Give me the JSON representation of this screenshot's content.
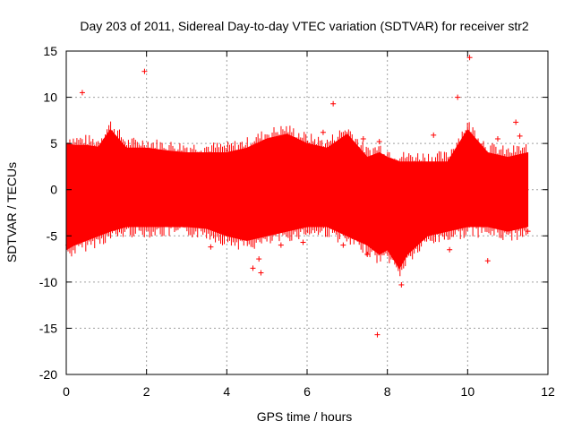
{
  "chart_data": {
    "type": "scatter",
    "title": "Day 203 of 2011, Sidereal Day-to-day VTEC variation (SDTVAR) for receiver str2",
    "xlabel": "GPS time / hours",
    "ylabel": "SDTVAR / TECUs",
    "xlim": [
      0,
      12
    ],
    "ylim": [
      -20,
      15
    ],
    "xticks": [
      0,
      2,
      4,
      6,
      8,
      10,
      12
    ],
    "yticks": [
      -20,
      -15,
      -10,
      -5,
      0,
      5,
      10,
      15
    ],
    "grid": true,
    "marker": "+",
    "color": "#ff0000",
    "series": [
      {
        "name": "SDTVAR",
        "band": {
          "x": [
            0,
            0.2,
            0.5,
            0.8,
            1.1,
            1.5,
            2.0,
            2.5,
            3.0,
            3.5,
            4.0,
            4.5,
            5.0,
            5.5,
            6.0,
            6.5,
            7.0,
            7.5,
            7.8,
            8.0,
            8.3,
            8.5,
            9.0,
            9.5,
            10.0,
            10.5,
            11.0,
            11.5
          ],
          "upper": [
            5.0,
            4.8,
            4.8,
            4.6,
            6.5,
            4.5,
            4.5,
            4.2,
            4.0,
            4.0,
            4.0,
            4.5,
            5.5,
            6.0,
            5.0,
            4.5,
            6.0,
            3.5,
            4.0,
            3.5,
            3.0,
            3.0,
            3.0,
            3.0,
            6.5,
            4.0,
            3.5,
            4.0
          ],
          "lower": [
            -6.5,
            -6.0,
            -5.5,
            -5.0,
            -4.5,
            -4.0,
            -4.0,
            -4.0,
            -4.0,
            -4.2,
            -5.0,
            -5.5,
            -5.0,
            -4.5,
            -4.0,
            -4.0,
            -5.0,
            -6.0,
            -7.0,
            -6.5,
            -8.5,
            -7.0,
            -5.0,
            -4.5,
            -4.0,
            -4.0,
            -4.5,
            -4.0
          ]
        },
        "outliers": {
          "x": [
            0.4,
            1.95,
            0.05,
            3.6,
            4.65,
            4.8,
            4.85,
            5.35,
            5.9,
            6.4,
            6.65,
            6.9,
            7.4,
            7.5,
            7.75,
            7.8,
            8.35,
            9.15,
            9.55,
            9.75,
            10.05,
            10.5,
            10.75,
            11.2,
            11.3,
            11.5
          ],
          "y": [
            10.5,
            12.8,
            -6.0,
            -6.2,
            -8.5,
            -7.5,
            -9.0,
            -6.0,
            -5.7,
            6.2,
            9.3,
            -6.0,
            5.5,
            -7.0,
            -15.7,
            5.2,
            -10.3,
            5.9,
            -6.5,
            10.0,
            14.3,
            -7.7,
            5.5,
            7.3,
            5.8,
            -4.5
          ]
        }
      }
    ]
  }
}
